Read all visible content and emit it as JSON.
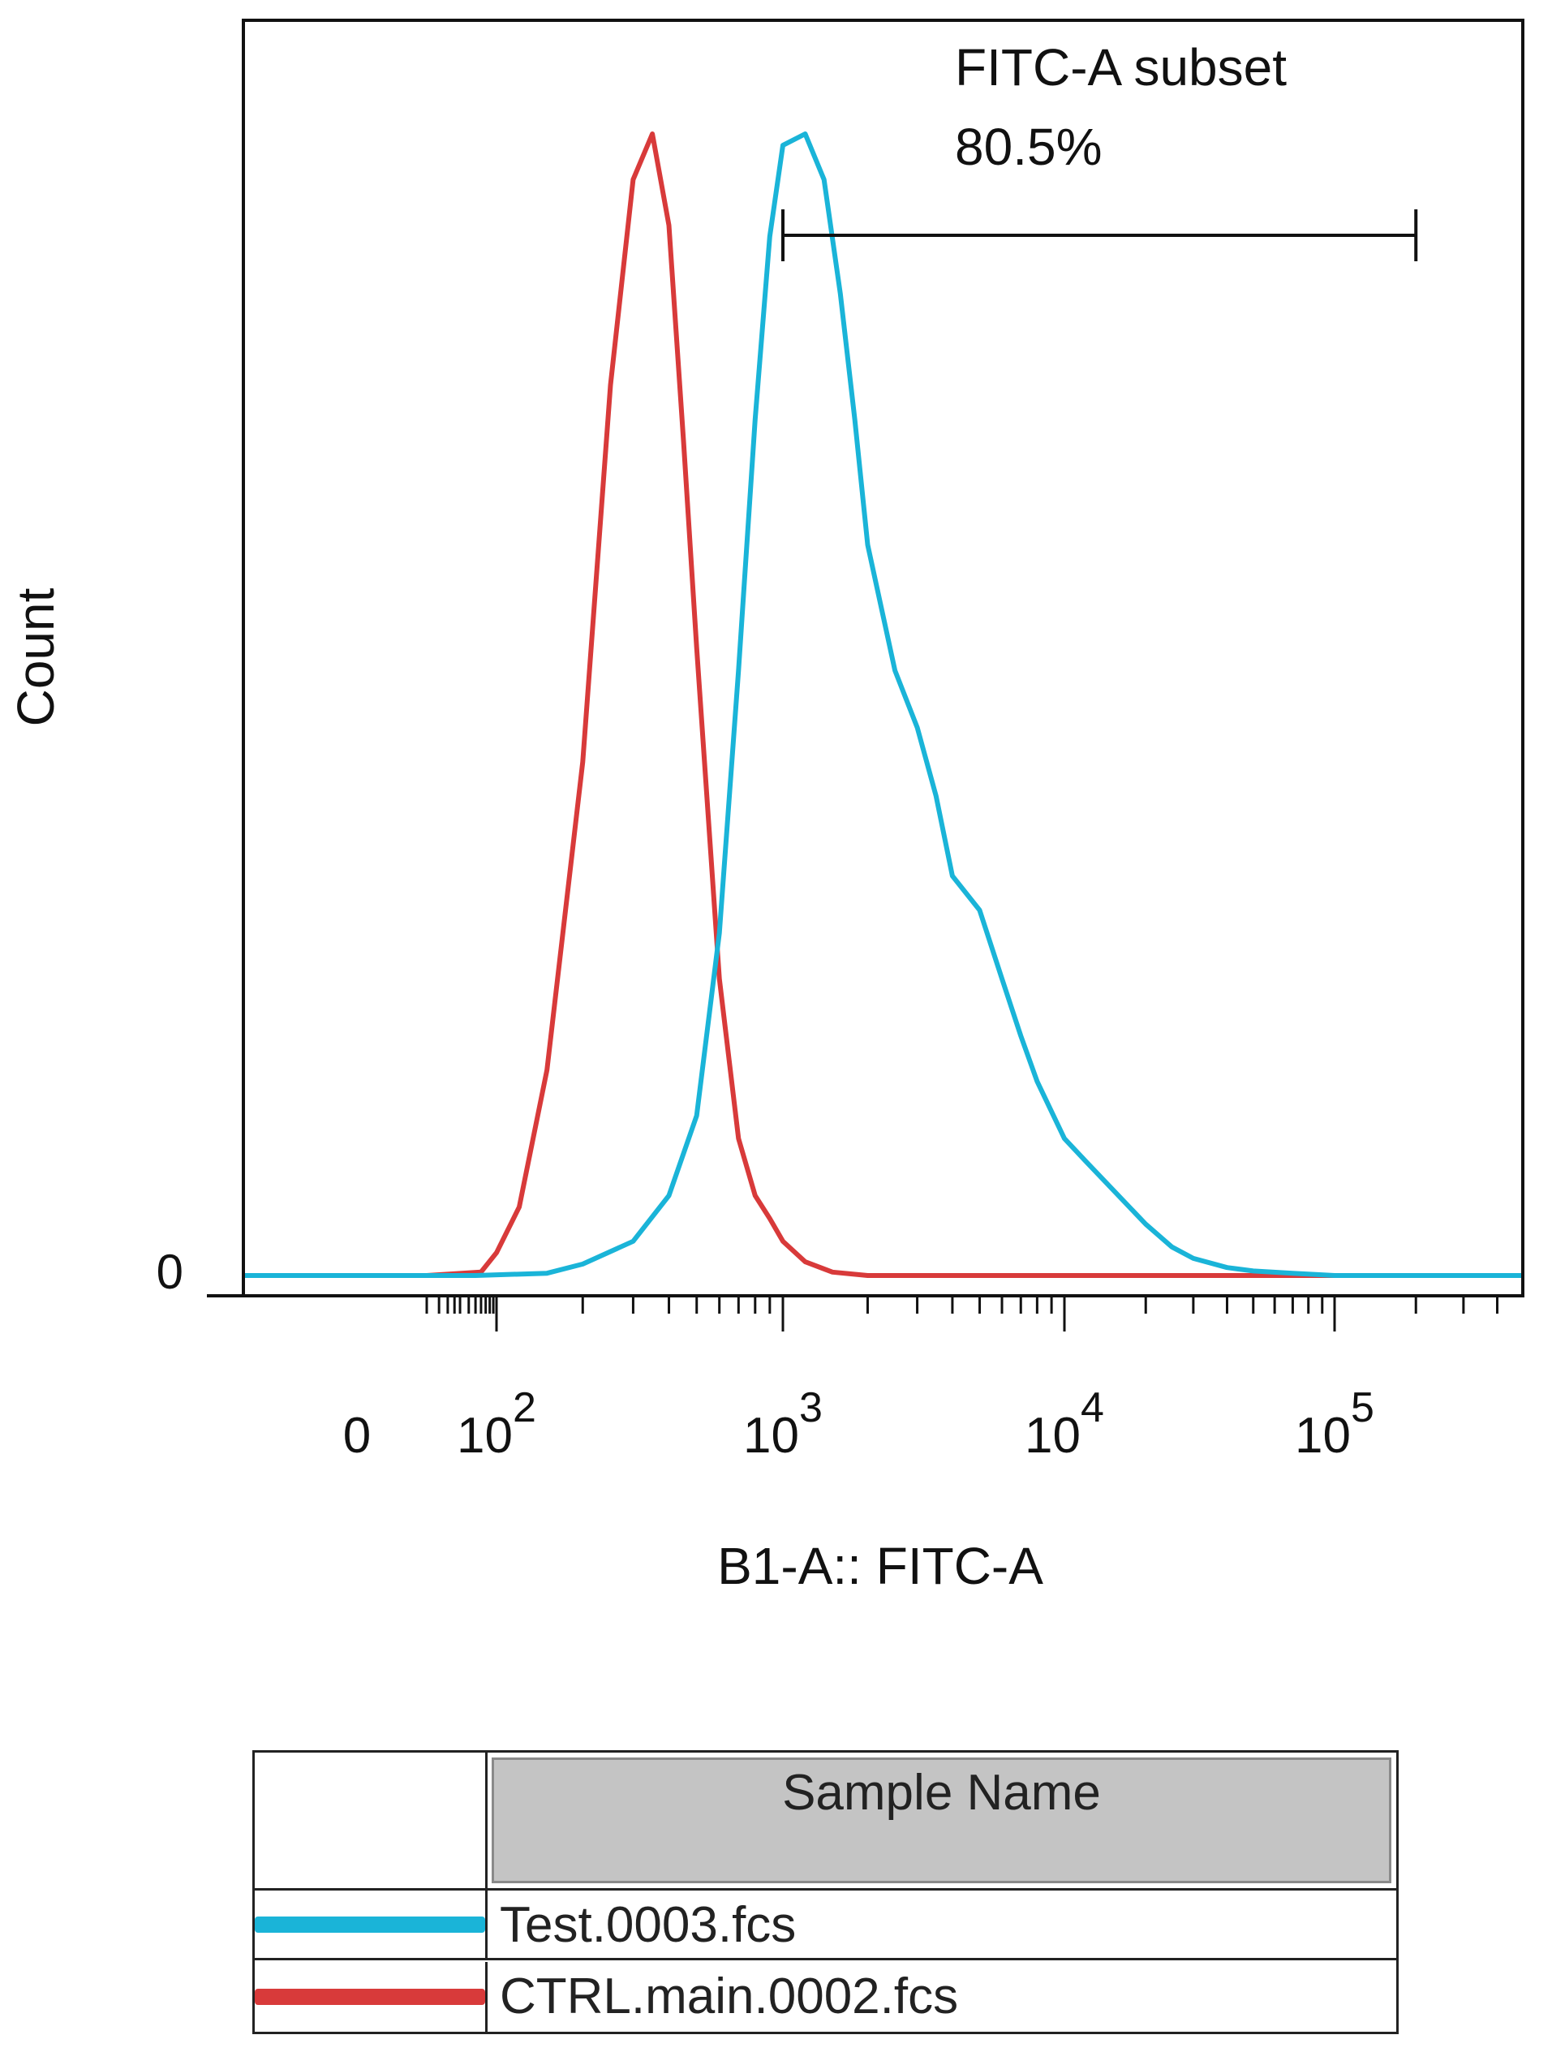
{
  "chart_data": {
    "type": "line",
    "title": "",
    "xlabel": "B1-A:: FITC-A",
    "ylabel": "Count",
    "x_scale": "biexponential (log decades)",
    "x_tick_labels": [
      {
        "label": "0",
        "base": "0",
        "exponent": ""
      },
      {
        "label": "10^2",
        "base": "10",
        "exponent": "2"
      },
      {
        "label": "10^3",
        "base": "10",
        "exponent": "3"
      },
      {
        "label": "10^4",
        "base": "10",
        "exponent": "4"
      },
      {
        "label": "10^5",
        "base": "10",
        "exponent": "5"
      }
    ],
    "y_tick_labels": [
      "0"
    ],
    "grid": false,
    "gate": {
      "name": "FITC-A subset",
      "percent": "80.5%",
      "x_range": [
        1000,
        200000
      ]
    },
    "series": [
      {
        "name": "Test.0003.fcs",
        "color": "#1ab4d8",
        "x": [
          10,
          50,
          150,
          200,
          300,
          400,
          500,
          600,
          700,
          800,
          900,
          1000,
          1200,
          1400,
          1600,
          1800,
          2000,
          2500,
          3000,
          3500,
          4000,
          5000,
          6000,
          7000,
          8000,
          10000,
          12000,
          15000,
          20000,
          25000,
          30000,
          40000,
          50000,
          70000,
          100000,
          200000
        ],
        "y": [
          0,
          0,
          0.2,
          1,
          3,
          7,
          14,
          30,
          53,
          75,
          91,
          99,
          100,
          96,
          86,
          75,
          64,
          53,
          48,
          42,
          35,
          32,
          26,
          21,
          17,
          12,
          10,
          7.6,
          4.5,
          2.5,
          1.5,
          0.7,
          0.4,
          0.2,
          0,
          0
        ]
      },
      {
        "name": "CTRL.main.0002.fcs",
        "color": "#d83a3a",
        "x": [
          10,
          60,
          100,
          120,
          150,
          200,
          250,
          300,
          350,
          400,
          450,
          500,
          600,
          700,
          800,
          900,
          1000,
          1200,
          1500,
          2000,
          5000,
          20000,
          60000,
          200000
        ],
        "y": [
          0,
          0.3,
          2,
          6,
          18,
          45,
          78,
          96,
          100,
          92,
          73,
          55,
          26,
          12,
          7,
          5,
          3,
          1.2,
          0.3,
          0,
          0,
          0,
          0,
          0
        ]
      }
    ]
  },
  "legend_table": {
    "header": "Sample Name",
    "rows": [
      {
        "label": "Test.0003.fcs",
        "color": "#1ab4d8"
      },
      {
        "label": "CTRL.main.0002.fcs",
        "color": "#d83a3a"
      }
    ]
  }
}
